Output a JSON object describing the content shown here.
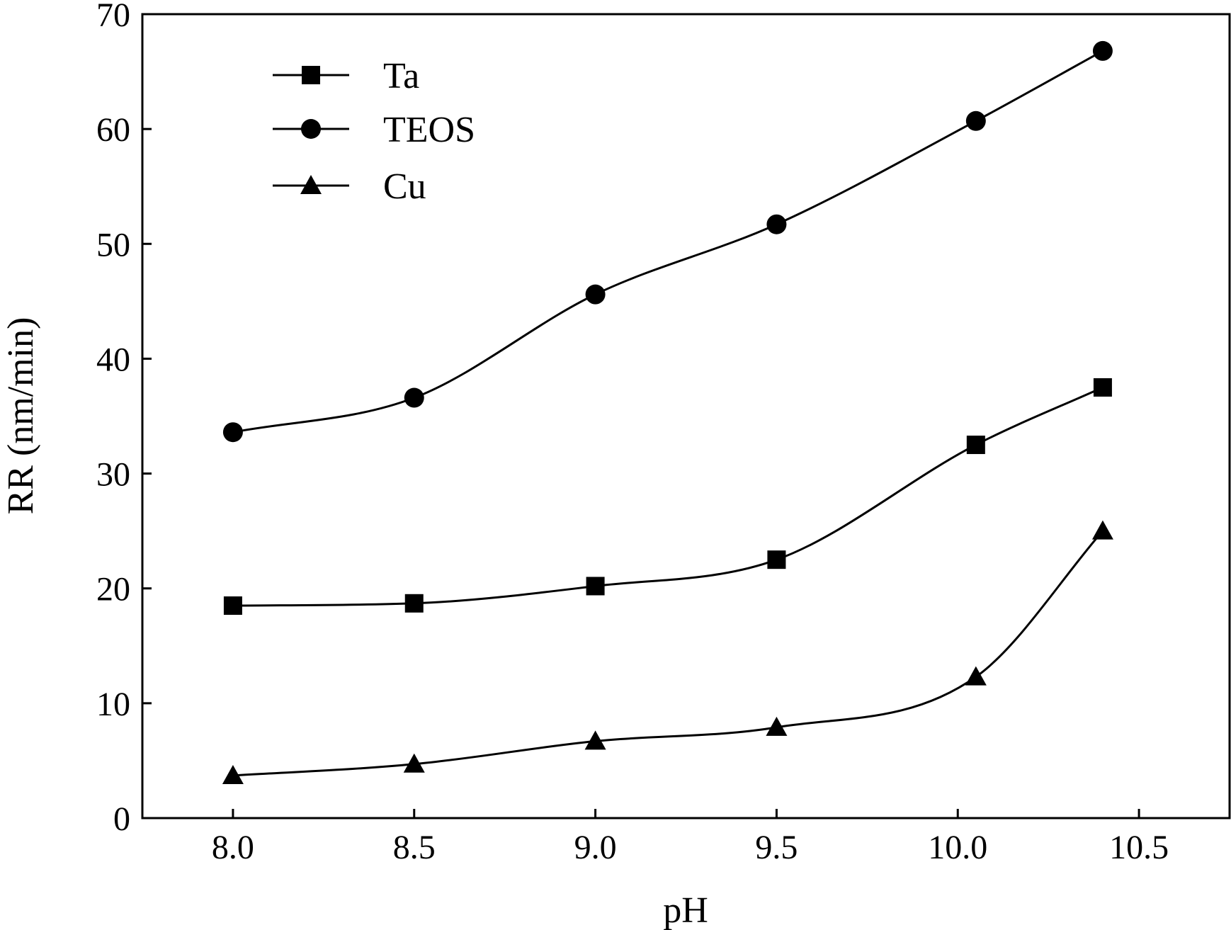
{
  "chart_data": {
    "type": "line",
    "title": "",
    "xlabel": "pH",
    "ylabel": "RR (nm/min)",
    "xlim": [
      7.75,
      10.75
    ],
    "ylim": [
      0,
      70
    ],
    "xticks": [
      "8.0",
      "8.5",
      "9.0",
      "9.5",
      "10.0",
      "10.5"
    ],
    "xtick_values": [
      8.0,
      8.5,
      9.0,
      9.5,
      10.0,
      10.5
    ],
    "yticks": [
      "0",
      "10",
      "20",
      "30",
      "40",
      "50",
      "60",
      "70"
    ],
    "ytick_values": [
      0,
      10,
      20,
      30,
      40,
      50,
      60,
      70
    ],
    "grid": false,
    "legend_position": "top-left",
    "series": [
      {
        "name": "Ta",
        "marker": "square",
        "color": "#000000",
        "x": [
          8.0,
          8.5,
          9.0,
          9.5,
          10.05,
          10.4
        ],
        "y": [
          18.5,
          18.7,
          20.2,
          22.5,
          32.5,
          37.5
        ]
      },
      {
        "name": "TEOS",
        "marker": "circle",
        "color": "#000000",
        "x": [
          8.0,
          8.5,
          9.0,
          9.5,
          10.05,
          10.4
        ],
        "y": [
          33.6,
          36.6,
          45.6,
          51.7,
          60.7,
          66.8
        ]
      },
      {
        "name": "Cu",
        "marker": "triangle",
        "color": "#000000",
        "x": [
          8.0,
          8.5,
          9.0,
          9.5,
          10.05,
          10.4
        ],
        "y": [
          3.7,
          4.7,
          6.7,
          7.9,
          12.3,
          25.0
        ]
      }
    ]
  }
}
